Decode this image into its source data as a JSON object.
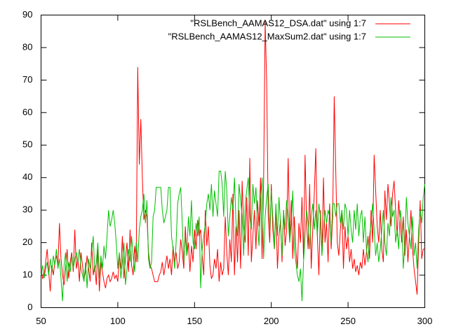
{
  "chart_data": {
    "type": "line",
    "x": [
      50,
      51,
      52,
      53,
      54,
      55,
      56,
      57,
      58,
      59,
      60,
      61,
      62,
      63,
      64,
      65,
      66,
      67,
      68,
      69,
      70,
      71,
      72,
      73,
      74,
      75,
      76,
      77,
      78,
      79,
      80,
      81,
      82,
      83,
      84,
      85,
      86,
      87,
      88,
      89,
      90,
      91,
      92,
      93,
      94,
      95,
      96,
      97,
      98,
      99,
      100,
      101,
      102,
      103,
      104,
      105,
      106,
      107,
      108,
      109,
      110,
      111,
      112,
      113,
      114,
      115,
      116,
      117,
      118,
      119,
      120,
      121,
      122,
      123,
      124,
      125,
      126,
      127,
      128,
      129,
      130,
      131,
      132,
      133,
      134,
      135,
      136,
      137,
      138,
      139,
      140,
      141,
      142,
      143,
      144,
      145,
      146,
      147,
      148,
      149,
      150,
      151,
      152,
      153,
      154,
      155,
      156,
      157,
      158,
      159,
      160,
      161,
      162,
      163,
      164,
      165,
      166,
      167,
      168,
      169,
      170,
      171,
      172,
      173,
      174,
      175,
      176,
      177,
      178,
      179,
      180,
      181,
      182,
      183,
      184,
      185,
      186,
      187,
      188,
      189,
      190,
      191,
      192,
      193,
      194,
      195,
      196,
      197,
      198,
      199,
      200,
      201,
      202,
      203,
      204,
      205,
      206,
      207,
      208,
      209,
      210,
      211,
      212,
      213,
      214,
      215,
      216,
      217,
      218,
      219,
      220,
      221,
      222,
      223,
      224,
      225,
      226,
      227,
      228,
      229,
      230,
      231,
      232,
      233,
      234,
      235,
      236,
      237,
      238,
      239,
      240,
      241,
      242,
      243,
      244,
      245,
      246,
      247,
      248,
      249,
      250,
      251,
      252,
      253,
      254,
      255,
      256,
      257,
      258,
      259,
      260,
      261,
      262,
      263,
      264,
      265,
      266,
      267,
      268,
      269,
      270,
      271,
      272,
      273,
      274,
      275,
      276,
      277,
      278,
      279,
      280,
      281,
      282,
      283,
      284,
      285,
      286,
      287,
      288,
      289,
      290,
      291,
      292,
      293,
      294,
      295,
      296,
      297,
      298,
      299,
      300
    ],
    "series": [
      {
        "name": "\"RSLBench_AAMAS12_DSA.dat\" using 1:7",
        "color": "#ff0000",
        "values": [
          12,
          9,
          10,
          14,
          18,
          11,
          5,
          13,
          10,
          14,
          16,
          13,
          26,
          15,
          10,
          7,
          12,
          18,
          9,
          14,
          17,
          11,
          24,
          12,
          15,
          8,
          17,
          13,
          9,
          11,
          16,
          12,
          8,
          20,
          10,
          13,
          7,
          18,
          5,
          14,
          11,
          8,
          6,
          9,
          10,
          8,
          9,
          11,
          9,
          10,
          8,
          16,
          12,
          22,
          9,
          15,
          20,
          11,
          24,
          13,
          10,
          19,
          14,
          74,
          44,
          58,
          40,
          27,
          30,
          28,
          17,
          13,
          12,
          10,
          8,
          8,
          8,
          10,
          11,
          14,
          10,
          13,
          16,
          12,
          15,
          10,
          19,
          14,
          17,
          12,
          14,
          21,
          17,
          12,
          25,
          16,
          20,
          11,
          19,
          14,
          24,
          18,
          27,
          22,
          24,
          16,
          10,
          30,
          19,
          25,
          13,
          9,
          10,
          15,
          12,
          18,
          8,
          14,
          10,
          12,
          28,
          17,
          10,
          21,
          14,
          35,
          10,
          25,
          14,
          30,
          12,
          39,
          25,
          20,
          34,
          16,
          46,
          14,
          22,
          30,
          18,
          33,
          25,
          40,
          15,
          39,
          88,
          69,
          28,
          20,
          38,
          24,
          18,
          31,
          12,
          22,
          27,
          14,
          30,
          19,
          24,
          46,
          21,
          33,
          15,
          28,
          18,
          12,
          26,
          20,
          34,
          15,
          47,
          26,
          18,
          38,
          12,
          24,
          35,
          49,
          22,
          10,
          30,
          16,
          40,
          20,
          26,
          14,
          32,
          18,
          28,
          65,
          42,
          20,
          16,
          24,
          30,
          12,
          25,
          18,
          22,
          14,
          18,
          12,
          15,
          11,
          13,
          10,
          14,
          12,
          18,
          13,
          17,
          22,
          15,
          30,
          20,
          47,
          36,
          25,
          20,
          30,
          18,
          14,
          36,
          27,
          38,
          32,
          25,
          35,
          39,
          30,
          22,
          33,
          26,
          20,
          28,
          16,
          24,
          14,
          22,
          30,
          18,
          12,
          8,
          4,
          20,
          33,
          15,
          18,
          18
        ]
      },
      {
        "name": "\"RSLBench_AAMAS12_MaxSum2.dat\" using 1:7",
        "color": "#00c000",
        "values": [
          10,
          13,
          9,
          12,
          14,
          10,
          15,
          11,
          16,
          13,
          18,
          12,
          15,
          9,
          2,
          13,
          17,
          8,
          14,
          11,
          16,
          12,
          15,
          17,
          14,
          18,
          12,
          10,
          8,
          14,
          6,
          15,
          12,
          17,
          22,
          11,
          14,
          20,
          9,
          16,
          12,
          19,
          15,
          22,
          30,
          25,
          27,
          30,
          26,
          20,
          12,
          17,
          9,
          14,
          20,
          7,
          12,
          18,
          14,
          22,
          16,
          11,
          20,
          14,
          24,
          28,
          30,
          35,
          26,
          33,
          15,
          12,
          14,
          28,
          30,
          37,
          37,
          37,
          37,
          30,
          26,
          28,
          30,
          37,
          37,
          22,
          18,
          12,
          20,
          32,
          35,
          37,
          26,
          14,
          22,
          16,
          28,
          22,
          33,
          20,
          18,
          26,
          22,
          28,
          6,
          18,
          22,
          26,
          32,
          35,
          30,
          38,
          28,
          36,
          32,
          28,
          42,
          42,
          38,
          28,
          42,
          36,
          22,
          28,
          34,
          30,
          40,
          26,
          22,
          38,
          33,
          28,
          16,
          32,
          36,
          40,
          28,
          24,
          38,
          32,
          37,
          26,
          19,
          33,
          40,
          15,
          28,
          34,
          38,
          24,
          36,
          28,
          18,
          32,
          22,
          34,
          26,
          16,
          30,
          24,
          33,
          28,
          20,
          26,
          36,
          18,
          14,
          10,
          8,
          12,
          2,
          14,
          22,
          30,
          26,
          18,
          28,
          32,
          24,
          30,
          22,
          32,
          28,
          16,
          24,
          30,
          26,
          30,
          28,
          20,
          32,
          32,
          28,
          32,
          32,
          26,
          30,
          24,
          32,
          30,
          22,
          30,
          24,
          20,
          30,
          24,
          32,
          22,
          28,
          30,
          20,
          28,
          18,
          14,
          22,
          26,
          32,
          24,
          16,
          20,
          14,
          18,
          24,
          30,
          20,
          16,
          26,
          22,
          34,
          28,
          30,
          20,
          24,
          18,
          30,
          26,
          12,
          20,
          34,
          26,
          22,
          18,
          28,
          16,
          20,
          12,
          24,
          30,
          26,
          34,
          38
        ]
      }
    ],
    "xlim": [
      50,
      300
    ],
    "xticks": [
      50,
      100,
      150,
      200,
      250,
      300
    ],
    "ylim": [
      0,
      90
    ],
    "yticks": [
      0,
      10,
      20,
      30,
      40,
      50,
      60,
      70,
      80,
      90
    ],
    "legend": "top-right",
    "grid": false
  }
}
